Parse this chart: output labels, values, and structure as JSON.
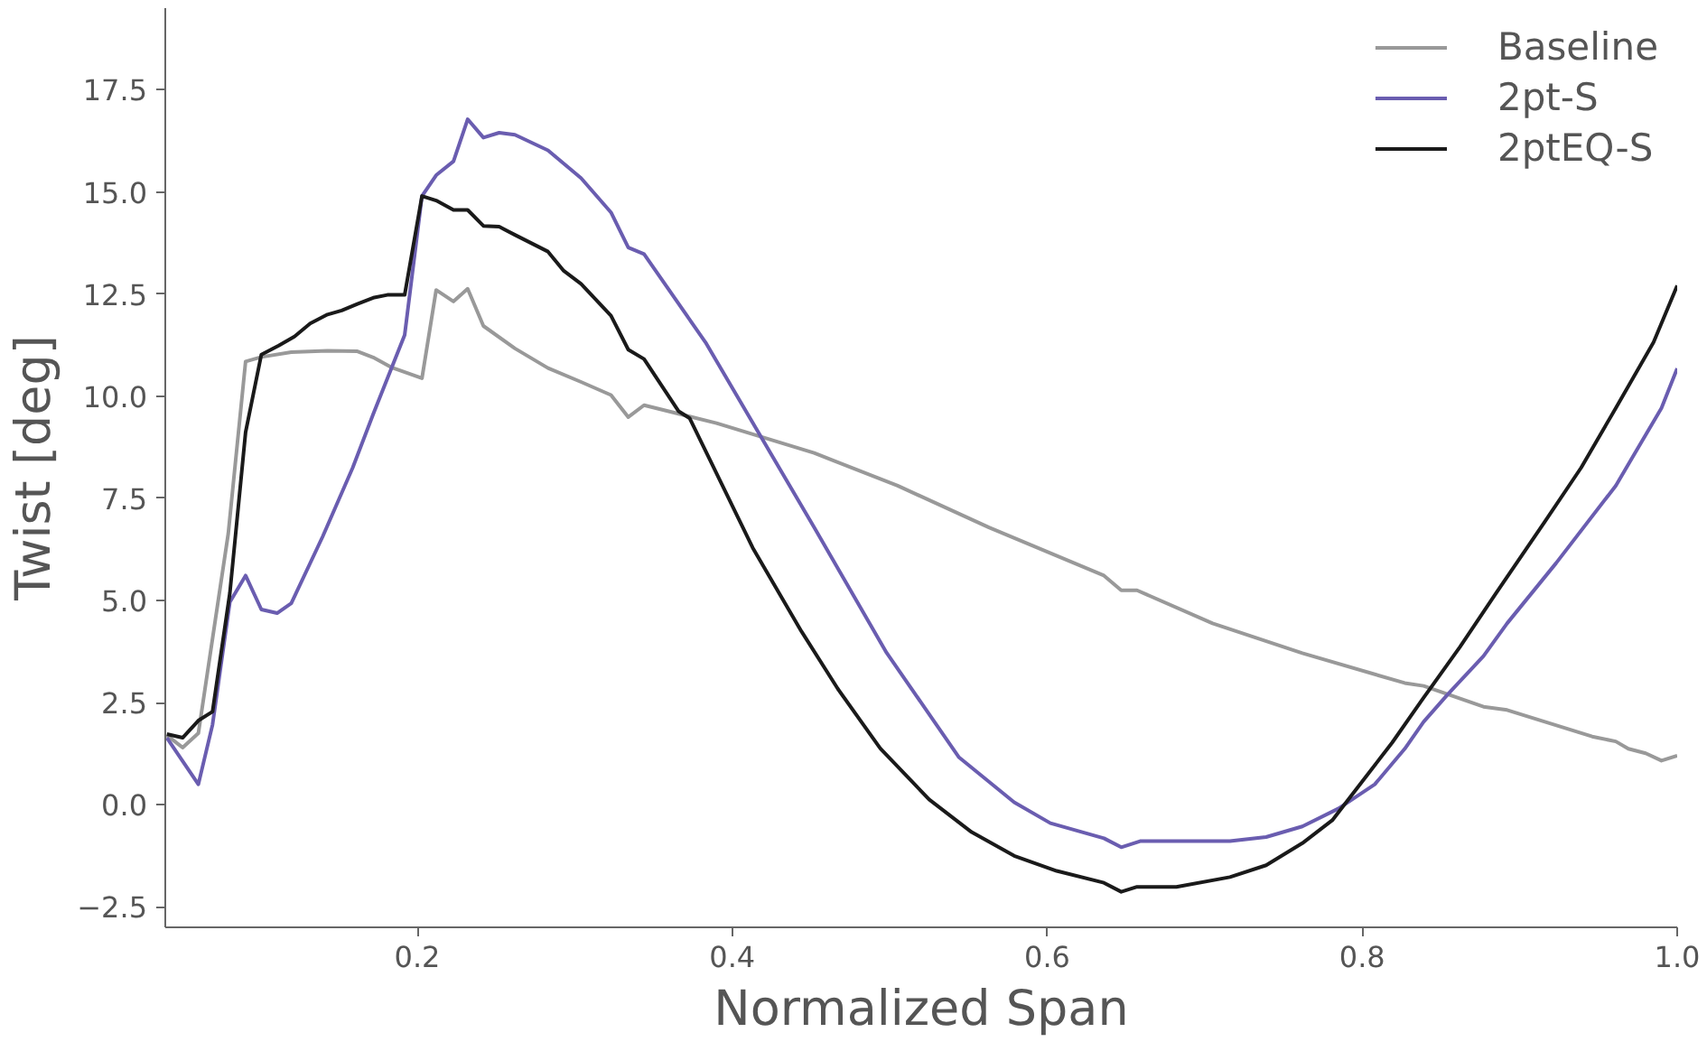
{
  "chart_data": {
    "type": "line",
    "xlabel": "Normalized Span",
    "ylabel": "Twist [deg]",
    "xlim": [
      0.04,
      1.0
    ],
    "ylim": [
      -3,
      19.5
    ],
    "xticks": [
      0.2,
      0.4,
      0.6,
      0.8,
      {
        "value": 1.0,
        "label": "1.0"
      }
    ],
    "yticks": [
      -2.5,
      {
        "value": 0,
        "label": "0.0"
      },
      2.5,
      {
        "value": 5,
        "label": "5.0"
      },
      7.5,
      {
        "value": 10,
        "label": "10.0"
      },
      12.5,
      {
        "value": 15,
        "label": "15.0"
      },
      17.5
    ],
    "grid": false,
    "legend": "top right",
    "marker": "none",
    "line_style": "solid",
    "series": [
      {
        "name": "Baseline",
        "color": "#999999",
        "x": [
          0.041,
          0.051,
          0.061,
          0.08,
          0.091,
          0.101,
          0.12,
          0.143,
          0.162,
          0.172,
          0.184,
          0.203,
          0.212,
          0.223,
          0.232,
          0.242,
          0.262,
          0.283,
          0.304,
          0.323,
          0.334,
          0.344,
          0.39,
          0.452,
          0.505,
          0.563,
          0.636,
          0.647,
          0.657,
          0.705,
          0.762,
          0.827,
          0.839,
          0.877,
          0.892,
          0.946,
          0.961,
          0.969,
          0.98,
          0.99,
          1.0
        ],
        "values": [
          1.7,
          1.4,
          1.75,
          6.64,
          10.85,
          10.96,
          11.08,
          11.11,
          11.1,
          10.95,
          10.7,
          10.44,
          12.6,
          12.32,
          12.63,
          11.72,
          11.17,
          10.69,
          10.35,
          10.03,
          9.49,
          9.78,
          9.34,
          8.61,
          7.81,
          6.79,
          5.61,
          5.25,
          5.25,
          4.44,
          3.71,
          2.98,
          2.91,
          2.4,
          2.32,
          1.67,
          1.55,
          1.37,
          1.26,
          1.08,
          1.2
        ]
      },
      {
        "name": "2pt-S",
        "color": "#6a5db0",
        "x": [
          0.041,
          0.061,
          0.07,
          0.081,
          0.091,
          0.101,
          0.111,
          0.12,
          0.14,
          0.159,
          0.172,
          0.192,
          0.203,
          0.212,
          0.223,
          0.232,
          0.242,
          0.252,
          0.262,
          0.283,
          0.304,
          0.323,
          0.334,
          0.344,
          0.383,
          0.452,
          0.498,
          0.544,
          0.579,
          0.602,
          0.636,
          0.647,
          0.659,
          0.682,
          0.716,
          0.739,
          0.762,
          0.785,
          0.808,
          0.827,
          0.839,
          0.854,
          0.877,
          0.892,
          0.923,
          0.961,
          0.99,
          1.0
        ],
        "values": [
          1.64,
          0.5,
          1.96,
          4.96,
          5.61,
          4.78,
          4.69,
          4.93,
          6.57,
          8.25,
          9.56,
          11.5,
          14.9,
          15.41,
          15.75,
          16.78,
          16.33,
          16.45,
          16.4,
          16.02,
          15.34,
          14.5,
          13.64,
          13.48,
          11.32,
          6.79,
          3.72,
          1.16,
          0.06,
          -0.45,
          -0.82,
          -1.04,
          -0.89,
          -0.89,
          -0.89,
          -0.79,
          -0.53,
          -0.09,
          0.5,
          1.37,
          2.03,
          2.69,
          3.64,
          4.44,
          5.91,
          7.81,
          9.71,
          10.68
        ]
      },
      {
        "name": "2ptEQ-S",
        "color": "#1a1a1a",
        "x": [
          0.041,
          0.051,
          0.061,
          0.07,
          0.081,
          0.091,
          0.101,
          0.112,
          0.122,
          0.132,
          0.143,
          0.152,
          0.162,
          0.172,
          0.181,
          0.192,
          0.203,
          0.212,
          0.223,
          0.232,
          0.242,
          0.252,
          0.262,
          0.283,
          0.293,
          0.304,
          0.323,
          0.334,
          0.344,
          0.366,
          0.373,
          0.413,
          0.444,
          0.467,
          0.494,
          0.525,
          0.552,
          0.579,
          0.606,
          0.636,
          0.647,
          0.657,
          0.682,
          0.716,
          0.739,
          0.762,
          0.781,
          0.8,
          0.819,
          0.839,
          0.862,
          0.885,
          0.916,
          0.939,
          0.961,
          0.985,
          1.0
        ],
        "values": [
          1.73,
          1.64,
          2.06,
          2.28,
          5.18,
          9.12,
          11.02,
          11.24,
          11.46,
          11.78,
          12.0,
          12.1,
          12.26,
          12.41,
          12.48,
          12.48,
          14.9,
          14.79,
          14.56,
          14.56,
          14.17,
          14.15,
          13.95,
          13.54,
          13.07,
          12.75,
          11.97,
          11.14,
          10.91,
          9.63,
          9.46,
          6.29,
          4.24,
          2.84,
          1.38,
          0.13,
          -0.67,
          -1.25,
          -1.62,
          -1.91,
          -2.13,
          -2.01,
          -2.01,
          -1.77,
          -1.48,
          -0.94,
          -0.38,
          0.57,
          1.52,
          2.62,
          3.86,
          5.18,
          6.93,
          8.25,
          9.71,
          11.32,
          12.71
        ]
      }
    ]
  }
}
